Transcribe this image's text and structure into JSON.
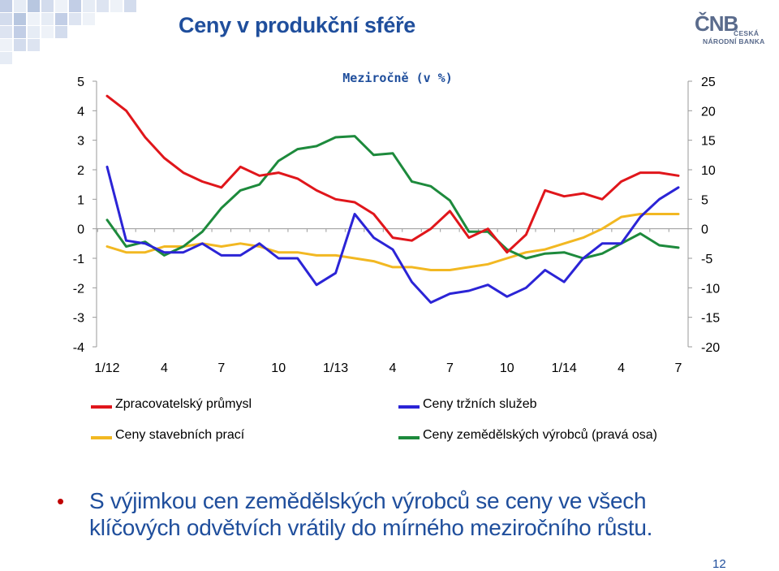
{
  "header": {
    "title": "Ceny v produkční sféře",
    "logo_mark": "ČNB",
    "logo_line1": "ČESKÁ",
    "logo_line2": "NÁRODNÍ BANKA"
  },
  "colors": {
    "title": "#1f4e9c",
    "bullet": "#c00000",
    "series_red": "#e0161b",
    "series_blue": "#2b24d6",
    "series_yellow": "#f2b822",
    "series_green": "#1d8a3c"
  },
  "chart_data": {
    "type": "line",
    "subtitle": "Meziročně (v %)",
    "x_tick_labels": [
      "1/12",
      "4",
      "7",
      "10",
      "1/13",
      "4",
      "7",
      "10",
      "1/14",
      "4",
      "7"
    ],
    "x_period_start": "2012-01",
    "x_period_end": "2014-07",
    "ylim_left": [
      -4,
      5
    ],
    "yticks_left": [
      "5",
      "4",
      "3",
      "2",
      "1",
      "0",
      "-1",
      "-2",
      "-3",
      "-4"
    ],
    "ylim_right": [
      -20,
      25
    ],
    "yticks_right": [
      "25",
      "20",
      "15",
      "10",
      "5",
      "0",
      "-5",
      "-10",
      "-15",
      "-20"
    ],
    "legend_position": "bottom",
    "series": [
      {
        "name": "Zpracovatelský průmysl",
        "axis": "left",
        "color": "#e0161b",
        "values": [
          4.5,
          4.0,
          3.1,
          2.4,
          1.9,
          1.6,
          1.4,
          2.1,
          1.8,
          1.9,
          1.7,
          1.3,
          1.0,
          0.9,
          0.5,
          -0.3,
          -0.4,
          0.0,
          0.6,
          -0.3,
          0.0,
          -0.8,
          -0.2,
          1.3,
          1.1,
          1.2,
          1.0,
          1.6,
          1.9,
          1.9,
          1.8
        ]
      },
      {
        "name": "Ceny tržních služeb",
        "axis": "left",
        "color": "#2b24d6",
        "values": [
          2.1,
          -0.4,
          -0.5,
          -0.8,
          -0.8,
          -0.5,
          -0.9,
          -0.9,
          -0.5,
          -1.0,
          -1.0,
          -1.9,
          -1.5,
          0.5,
          -0.3,
          -0.7,
          -1.8,
          -2.5,
          -2.2,
          -2.1,
          -1.9,
          -2.3,
          -2.0,
          -1.4,
          -1.8,
          -1.0,
          -0.5,
          -0.5,
          0.4,
          1.0,
          1.4
        ]
      },
      {
        "name": "Ceny stavebních prací",
        "axis": "left",
        "color": "#f2b822",
        "values": [
          -0.6,
          -0.8,
          -0.8,
          -0.6,
          -0.6,
          -0.5,
          -0.6,
          -0.5,
          -0.6,
          -0.8,
          -0.8,
          -0.9,
          -0.9,
          -1.0,
          -1.1,
          -1.3,
          -1.3,
          -1.4,
          -1.4,
          -1.3,
          -1.2,
          -1.0,
          -0.8,
          -0.7,
          -0.5,
          -0.3,
          0.0,
          0.4,
          0.5,
          0.5,
          0.5
        ]
      },
      {
        "name": "Ceny zemědělských výrobců (pravá osa)",
        "axis": "right",
        "color": "#1d8a3c",
        "values": [
          1.5,
          -3.0,
          -2.2,
          -4.5,
          -3.0,
          -0.5,
          3.5,
          6.5,
          7.5,
          11.5,
          13.5,
          14.0,
          15.5,
          15.7,
          12.5,
          12.8,
          8.0,
          7.2,
          4.8,
          -0.5,
          -0.5,
          -3.5,
          -5.0,
          -4.2,
          -4.0,
          -5.0,
          -4.2,
          -2.5,
          -0.8,
          -2.8,
          -3.2
        ]
      }
    ]
  },
  "bullet": {
    "text": "S výjimkou cen zemědělských výrobců se ceny ve všech klíčových odvětvích vrátily do mírného meziročního růstu."
  },
  "footer": {
    "page_number": "12"
  }
}
